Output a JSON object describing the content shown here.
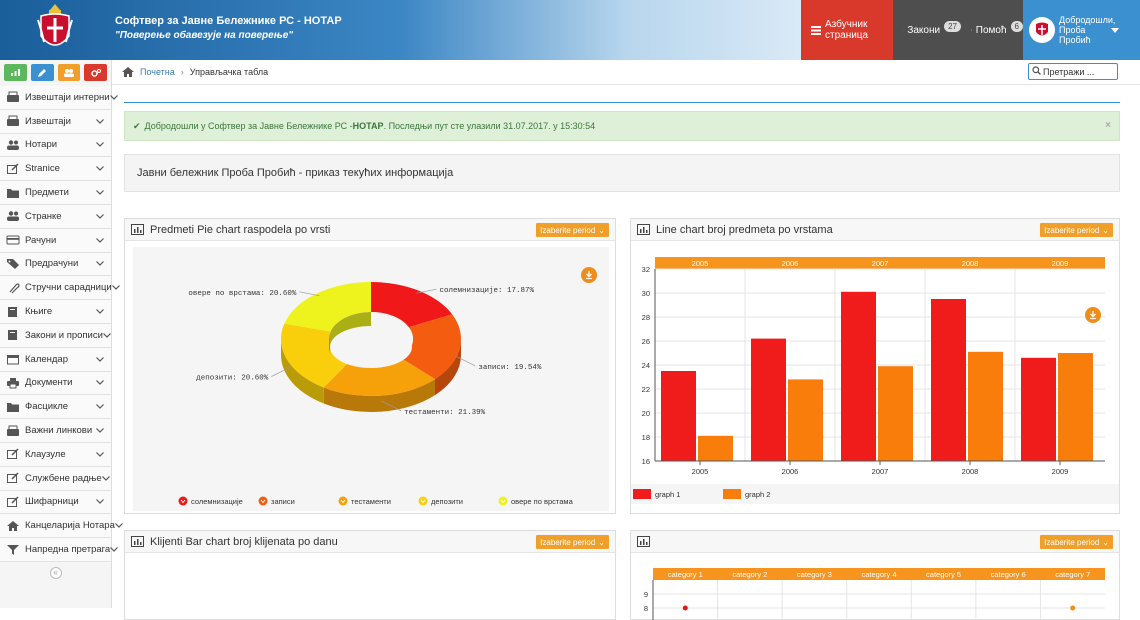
{
  "header": {
    "app_title": "Софтвер за Јавне Бележнике РС - НОТАР",
    "app_subtitle": "\"Поверење обавезује на поверење\"",
    "btn_index": "Азбучник страница",
    "btn_laws": "Закони",
    "laws_badge": "27",
    "btn_help": "Помоћ",
    "help_badge": "6",
    "user_name": "Добродошли, Проба Пробић"
  },
  "breadcrumb": {
    "home": "Почетна",
    "current": "Управљачка табла"
  },
  "search": {
    "placeholder": "Претражи ..."
  },
  "sidebar": {
    "items": [
      {
        "label": "Извештаји интерни",
        "icon": "inbox-icon"
      },
      {
        "label": "Извештаји",
        "icon": "inbox-icon"
      },
      {
        "label": "Нотари",
        "icon": "users-icon"
      },
      {
        "label": "Stranice",
        "icon": "edit-icon"
      },
      {
        "label": "Предмети",
        "icon": "folder-icon"
      },
      {
        "label": "Странке",
        "icon": "users-icon"
      },
      {
        "label": "Рачуни",
        "icon": "card-icon"
      },
      {
        "label": "Предрачуни",
        "icon": "tag-icon"
      },
      {
        "label": "Стручни сарадници",
        "icon": "paperclip-icon"
      },
      {
        "label": "Књиге",
        "icon": "book-icon"
      },
      {
        "label": "Закони и прописи",
        "icon": "book-icon"
      },
      {
        "label": "Календар",
        "icon": "calendar-icon"
      },
      {
        "label": "Документи",
        "icon": "print-icon"
      },
      {
        "label": "Фасцикле",
        "icon": "folder-icon"
      },
      {
        "label": "Важни линкови",
        "icon": "inbox-icon"
      },
      {
        "label": "Клаузуле",
        "icon": "edit-icon"
      },
      {
        "label": "Службене радње",
        "icon": "edit-icon"
      },
      {
        "label": "Шифарници",
        "icon": "edit-icon"
      },
      {
        "label": "Канцеларија Нотара",
        "icon": "home-icon"
      },
      {
        "label": "Напредна претрага",
        "icon": "filter-icon"
      }
    ]
  },
  "alert": {
    "text_before": "Добродошли у Софтвер за Јавне Бележнике РС - ",
    "app": "НОТАР",
    "text_after": " . Последњи пут сте улазили 31.07.2017. у 15:30:54",
    "close": "×"
  },
  "info_title": "Јавни бележник Проба Пробић - приказ текућих информација",
  "period_label": "Izaberite period",
  "panels": {
    "pie_title": "Predmeti Pie chart raspodela po vrsti",
    "line_title": "Line chart broj predmeta po vrstama",
    "bar_title": "Klijenti Bar chart broj klijenata po danu"
  },
  "colors": {
    "accent": "#3b91d0",
    "orange": "#f08c1a",
    "red": "#d9392b",
    "green_alert": "#dff0d8"
  },
  "chart_data": [
    {
      "type": "pie",
      "title": "Predmeti Pie chart raspodela po vrsti",
      "labels": [
        "солемнизације",
        "записи",
        "тестаменти",
        "депозити",
        "овере по врстама"
      ],
      "values": [
        17.87,
        19.54,
        21.39,
        20.6,
        20.6
      ],
      "data_labels": [
        "солемнизације: 17.87%",
        "записи: 19.54%",
        "тестаменти: 21.39%",
        "депозити: 20.60%",
        "овере по врстама: 20.60%"
      ],
      "colors": [
        "#f01818",
        "#f45d10",
        "#f6a10a",
        "#f8cf0a",
        "#eef31e"
      ],
      "legend": "bottom"
    },
    {
      "type": "bar",
      "title": "Line chart broj predmeta po vrstama",
      "categories": [
        "2005",
        "2006",
        "2007",
        "2008",
        "2009"
      ],
      "series": [
        {
          "name": "graph 1",
          "values": [
            23.5,
            26.2,
            30.1,
            29.5,
            24.6
          ],
          "color": "#f01c1c"
        },
        {
          "name": "graph 2",
          "values": [
            18.1,
            22.8,
            23.9,
            25.1,
            25.0
          ],
          "color": "#f87d0a"
        }
      ],
      "ylim": [
        16,
        32
      ],
      "yticks": [
        "16",
        "18",
        "20",
        "22",
        "24",
        "26",
        "28",
        "30",
        "32"
      ],
      "legend": "bottom-left"
    },
    {
      "type": "line",
      "categories": [
        "category 1",
        "category 2",
        "category 3",
        "category 4",
        "category 5",
        "category 6",
        "category 7"
      ],
      "yticks": [
        "9",
        "8"
      ],
      "series": [
        {
          "values": [
            8.0,
            null,
            null,
            null,
            null,
            null,
            null
          ],
          "color": "#e01818"
        },
        {
          "values": [
            null,
            null,
            null,
            null,
            null,
            null,
            8.0
          ],
          "color": "#f08c1a"
        }
      ]
    }
  ]
}
